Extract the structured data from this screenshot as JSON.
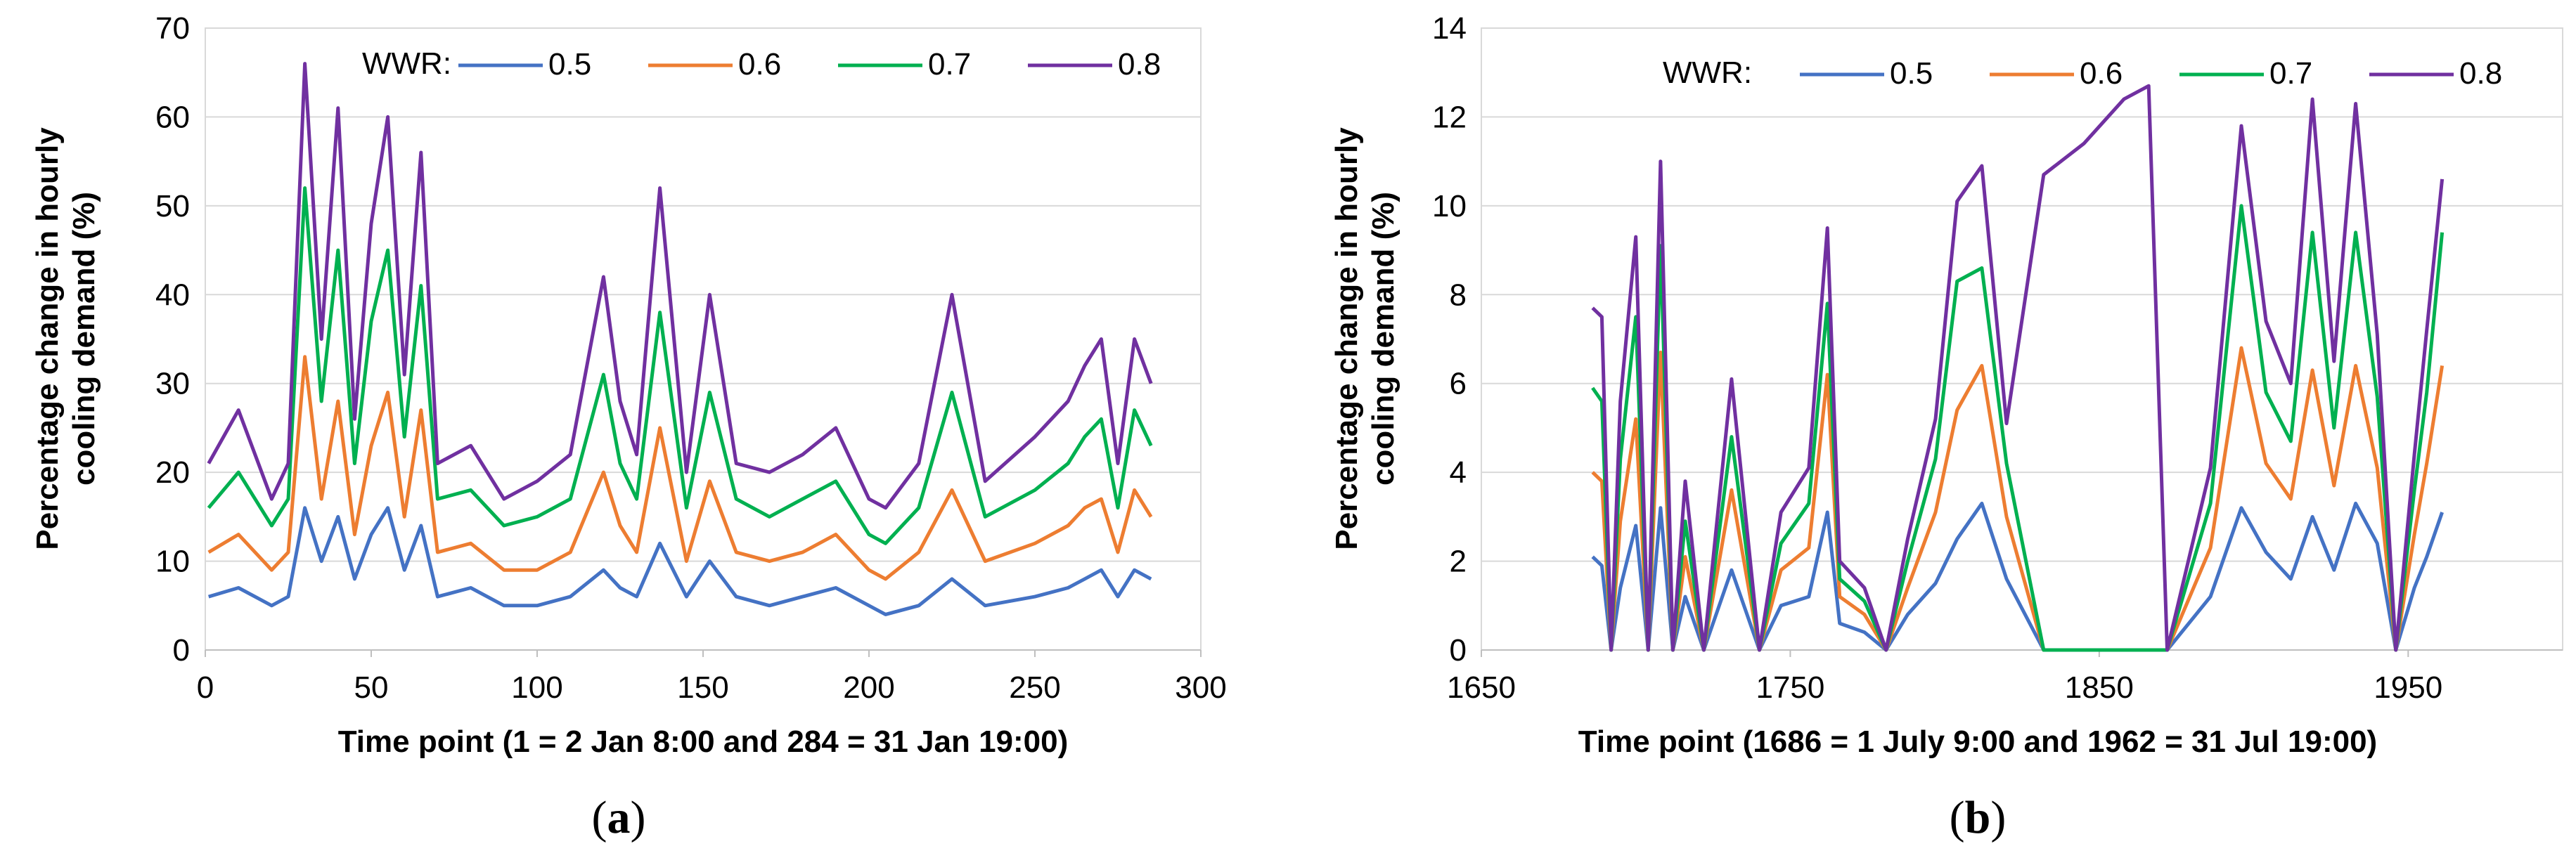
{
  "chart_data": [
    {
      "type": "line",
      "panel_label": "a",
      "ylabel_line1": "Percentage change in hourly",
      "ylabel_line2": "cooling demand (%)",
      "xlabel": "Time point (1 = 2 Jan 8:00 and 284 = 31 Jan 19:00)",
      "legend_title": "WWR:",
      "xlim": [
        0,
        300
      ],
      "ylim": [
        0,
        70
      ],
      "xticks": [
        0,
        50,
        100,
        150,
        200,
        250,
        300
      ],
      "yticks": [
        0,
        10,
        20,
        30,
        40,
        50,
        60,
        70
      ],
      "x": [
        1,
        10,
        20,
        25,
        30,
        35,
        40,
        45,
        50,
        55,
        60,
        65,
        70,
        80,
        90,
        100,
        110,
        120,
        125,
        130,
        137,
        145,
        152,
        160,
        170,
        180,
        190,
        200,
        205,
        215,
        225,
        235,
        250,
        260,
        265,
        270,
        275,
        280,
        285
      ],
      "series": [
        {
          "name": "0.5",
          "color": "#4472C4",
          "values": [
            6,
            7,
            5,
            6,
            16,
            10,
            15,
            8,
            13,
            16,
            9,
            14,
            6,
            7,
            5,
            5,
            6,
            9,
            7,
            6,
            12,
            6,
            10,
            6,
            5,
            6,
            7,
            5,
            4,
            5,
            8,
            5,
            6,
            7,
            8,
            9,
            6,
            9,
            8
          ]
        },
        {
          "name": "0.6",
          "color": "#ED7D31",
          "values": [
            11,
            13,
            9,
            11,
            33,
            17,
            28,
            13,
            23,
            29,
            15,
            27,
            11,
            12,
            9,
            9,
            11,
            20,
            14,
            11,
            25,
            10,
            19,
            11,
            10,
            11,
            13,
            9,
            8,
            11,
            18,
            10,
            12,
            14,
            16,
            17,
            11,
            18,
            15
          ]
        },
        {
          "name": "0.7",
          "color": "#00B050",
          "values": [
            16,
            20,
            14,
            17,
            52,
            28,
            45,
            21,
            37,
            45,
            24,
            41,
            17,
            18,
            14,
            15,
            17,
            31,
            21,
            17,
            38,
            16,
            29,
            17,
            15,
            17,
            19,
            13,
            12,
            16,
            29,
            15,
            18,
            21,
            24,
            26,
            16,
            27,
            23
          ]
        },
        {
          "name": "0.8",
          "color": "#7030A0",
          "values": [
            21,
            27,
            17,
            21,
            66,
            35,
            61,
            26,
            48,
            60,
            31,
            56,
            21,
            23,
            17,
            19,
            22,
            42,
            28,
            22,
            52,
            20,
            40,
            21,
            20,
            22,
            25,
            17,
            16,
            21,
            40,
            19,
            24,
            28,
            32,
            35,
            21,
            35,
            30
          ]
        }
      ]
    },
    {
      "type": "line",
      "panel_label": "b",
      "ylabel_line1": "Percentage change in hourly",
      "ylabel_line2": "cooling demand (%)",
      "xlabel": "Time point (1686 = 1 July 9:00 and 1962 = 31 Jul 19:00)",
      "legend_title": "WWR:",
      "xlim": [
        1650,
        2000
      ],
      "ylim": [
        0,
        14
      ],
      "xticks": [
        1650,
        1750,
        1850,
        1950
      ],
      "yticks": [
        0,
        2,
        4,
        6,
        8,
        10,
        12,
        14
      ],
      "x": [
        1686,
        1689,
        1692,
        1695,
        1700,
        1704,
        1708,
        1712,
        1716,
        1722,
        1731,
        1740,
        1747,
        1756,
        1762,
        1766,
        1774,
        1781,
        1788,
        1797,
        1804,
        1812,
        1820,
        1832,
        1845,
        1858,
        1866,
        1872,
        1886,
        1896,
        1904,
        1912,
        1919,
        1926,
        1933,
        1940,
        1946,
        1952,
        1956,
        1961
      ],
      "series": [
        {
          "name": "0.5",
          "color": "#4472C4",
          "values": [
            2.1,
            1.9,
            0,
            1.4,
            2.8,
            0,
            3.2,
            0,
            1.2,
            0,
            1.8,
            0,
            1.0,
            1.2,
            3.1,
            0.6,
            0.4,
            0,
            0.8,
            1.5,
            2.5,
            3.3,
            1.6,
            0,
            0,
            0,
            0,
            0,
            1.2,
            3.2,
            2.2,
            1.6,
            3.0,
            1.8,
            3.3,
            2.4,
            0,
            1.4,
            2.1,
            3.1
          ]
        },
        {
          "name": "0.6",
          "color": "#ED7D31",
          "values": [
            4.0,
            3.8,
            0,
            2.9,
            5.2,
            0,
            6.7,
            0,
            2.1,
            0,
            3.6,
            0,
            1.8,
            2.3,
            6.2,
            1.2,
            0.8,
            0,
            1.4,
            3.1,
            5.4,
            6.4,
            3.0,
            0,
            0,
            0,
            0,
            0,
            2.3,
            6.8,
            4.2,
            3.4,
            6.3,
            3.7,
            6.4,
            4.1,
            0,
            2.6,
            4.2,
            6.4
          ]
        },
        {
          "name": "0.7",
          "color": "#00B050",
          "values": [
            5.9,
            5.6,
            0,
            4.3,
            7.5,
            0,
            9.1,
            0,
            2.9,
            0,
            4.8,
            0,
            2.4,
            3.3,
            7.8,
            1.6,
            1.1,
            0,
            2.0,
            4.3,
            8.3,
            8.6,
            4.2,
            0,
            0,
            0,
            0,
            0,
            3.3,
            10.0,
            5.8,
            4.7,
            9.4,
            5.0,
            9.4,
            5.7,
            0,
            3.6,
            5.8,
            9.4
          ]
        },
        {
          "name": "0.8",
          "color": "#7030A0",
          "values": [
            7.7,
            7.5,
            0,
            5.6,
            9.3,
            0,
            11.0,
            0,
            3.8,
            0,
            6.1,
            0,
            3.1,
            4.1,
            9.5,
            2.0,
            1.4,
            0,
            2.5,
            5.2,
            10.1,
            10.9,
            5.1,
            10.7,
            11.4,
            12.4,
            12.7,
            0,
            4.1,
            11.8,
            7.4,
            6.0,
            12.4,
            6.5,
            12.3,
            7.1,
            0,
            4.4,
            7.2,
            10.6
          ]
        }
      ]
    }
  ]
}
